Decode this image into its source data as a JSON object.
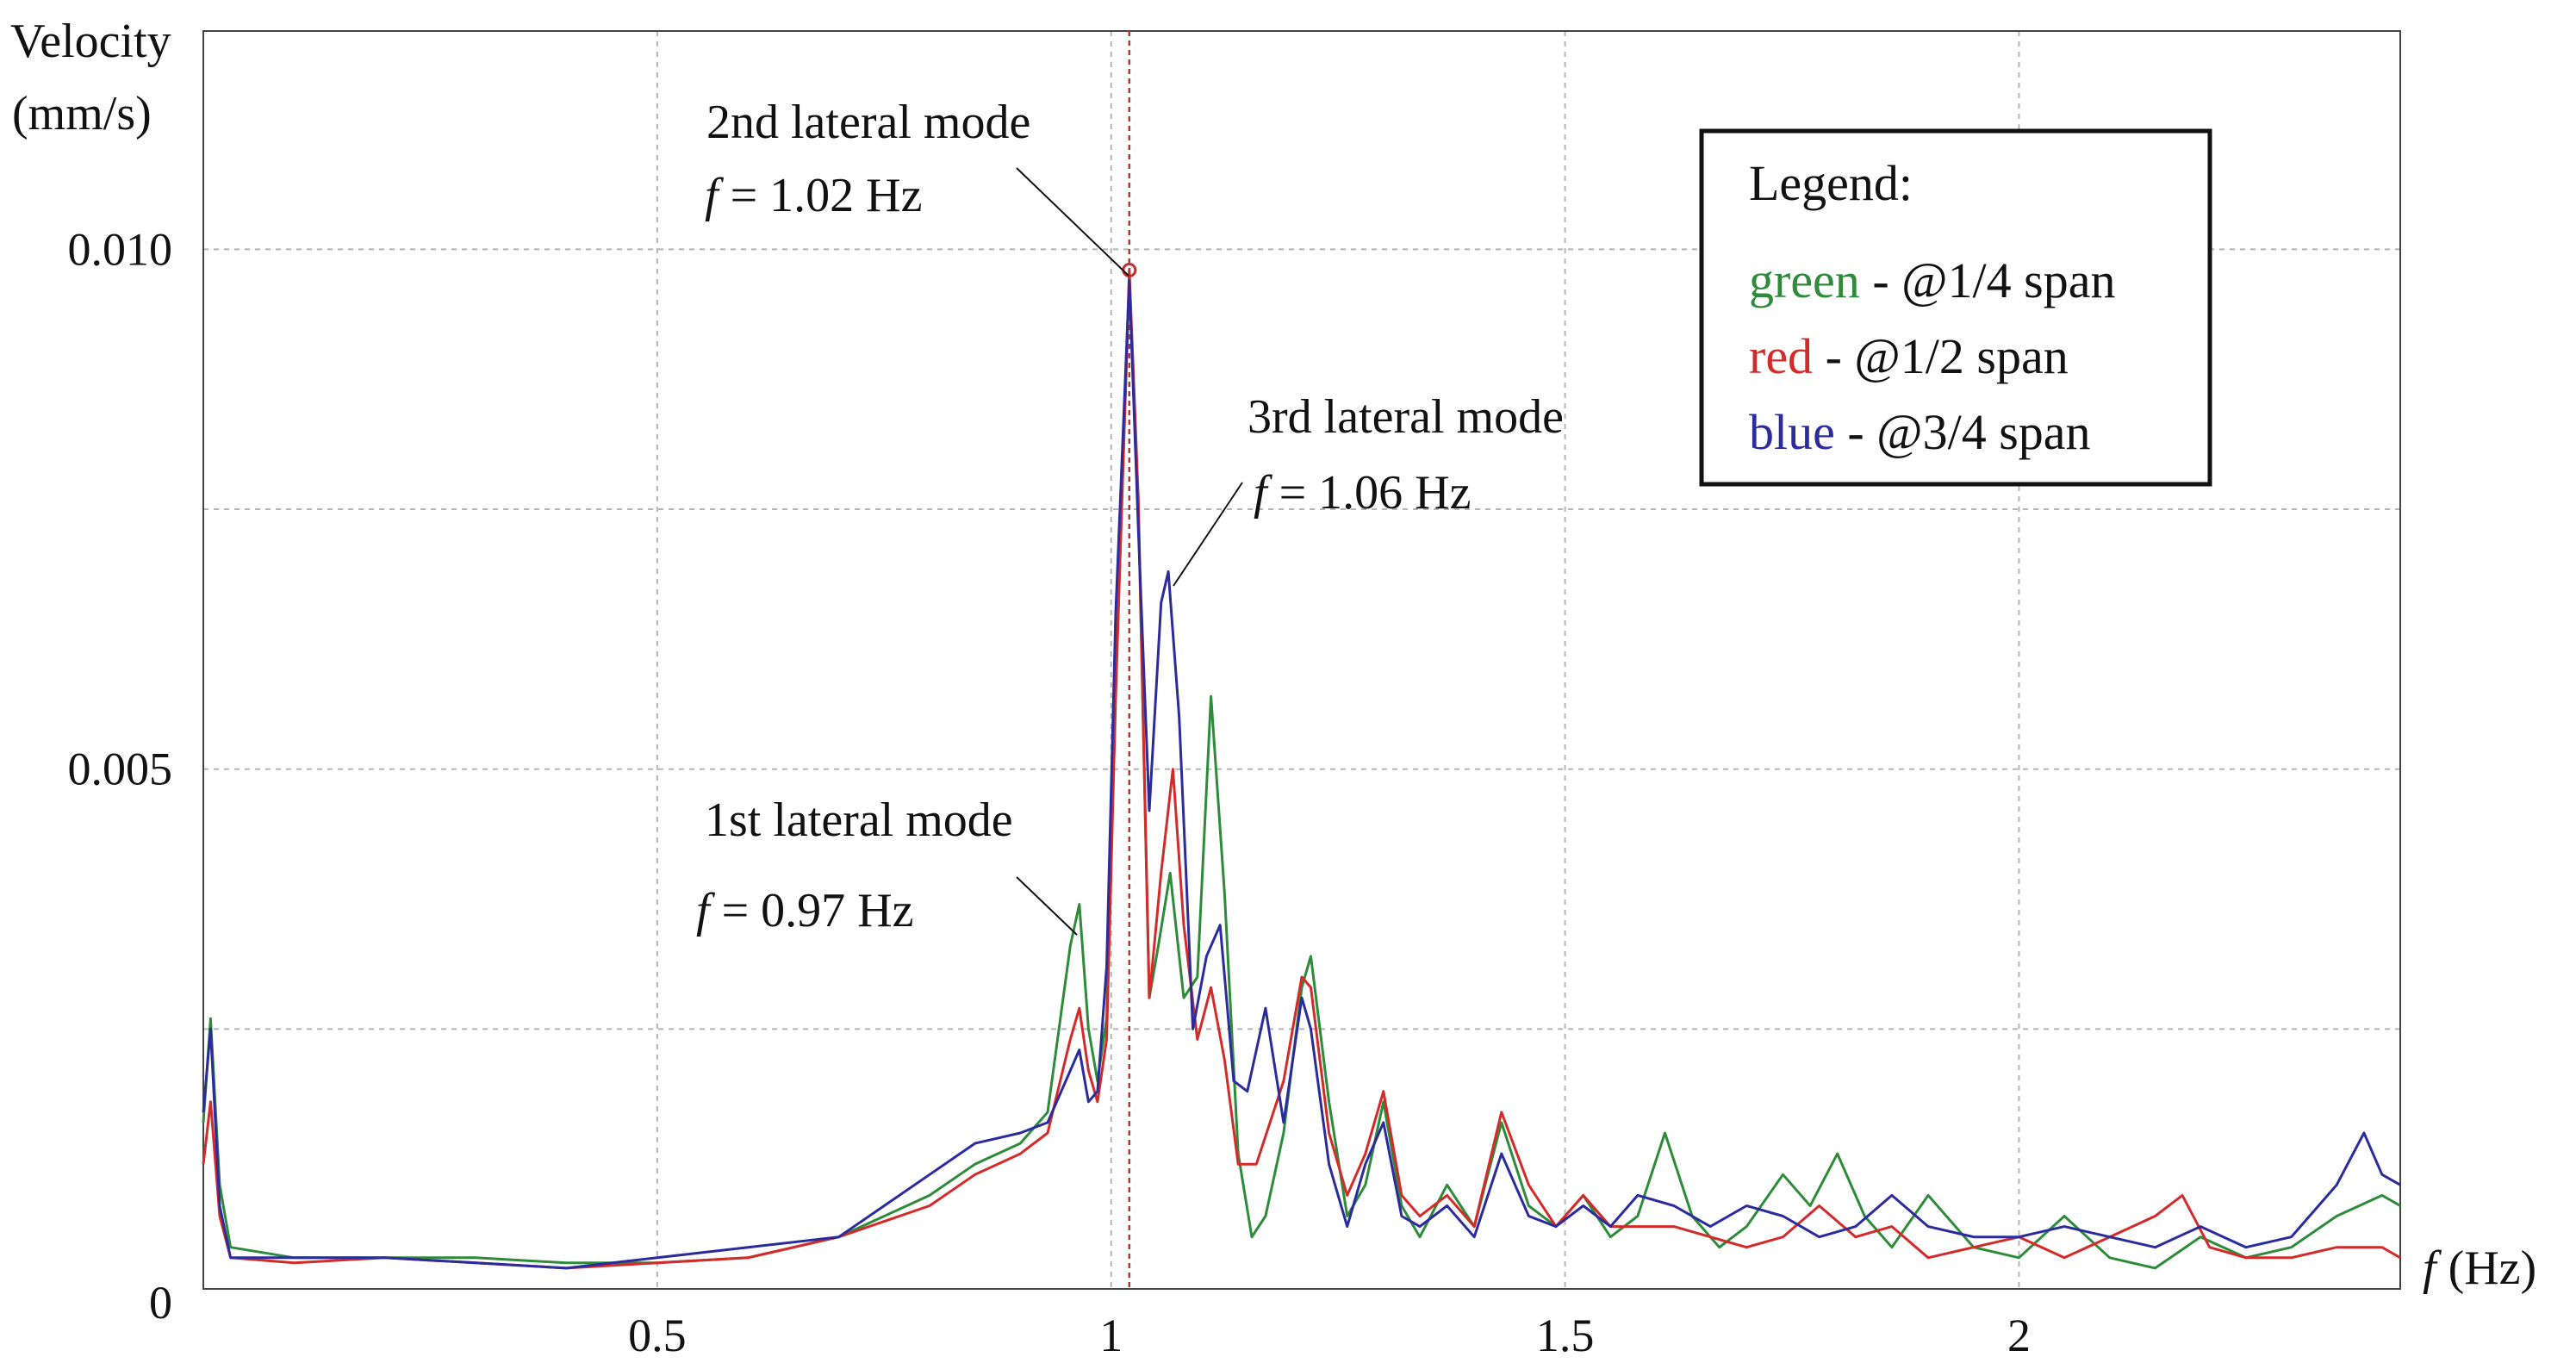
{
  "chart_data": {
    "type": "line",
    "title": "",
    "ylabel_line1": "Velocity",
    "ylabel_line2": "(mm/s)",
    "xlabel_italic": "f",
    "xlabel_rest": " (Hz)",
    "xlim": [
      0,
      2.42
    ],
    "ylim": [
      0,
      0.0121
    ],
    "x_ticks": [
      {
        "value": 0.5,
        "label": "0.5"
      },
      {
        "value": 1.0,
        "label": "1"
      },
      {
        "value": 1.5,
        "label": "1.5"
      },
      {
        "value": 2.0,
        "label": "2"
      }
    ],
    "y_ticks": [
      {
        "value": 0,
        "label": "0"
      },
      {
        "value": 0.005,
        "label": "0.005"
      },
      {
        "value": 0.01,
        "label": "0.010"
      }
    ],
    "x_grid": [
      0.5,
      1.0,
      1.5,
      2.0
    ],
    "y_grid": [
      0.0025,
      0.005,
      0.0075,
      0.01
    ],
    "marker_x": 1.02,
    "legend": {
      "title": "Legend:",
      "entries": [
        {
          "color_word": "green",
          "rest": " - @1/4 span",
          "color": "#2e8b3a"
        },
        {
          "color_word": "red",
          "rest": " - @1/2 span",
          "color": "#d42a2a"
        },
        {
          "color_word": "blue",
          "rest": " - @3/4 span",
          "color": "#2b2b9e"
        }
      ]
    },
    "annotations": [
      {
        "id": "mode1",
        "title": "1st lateral mode",
        "f_label": "f",
        "value_text": " = 0.97  Hz",
        "x": 0.97,
        "y": 0.0037
      },
      {
        "id": "mode2",
        "title": "2nd lateral mode",
        "f_label": "f",
        "value_text": " = 1.02  Hz",
        "x": 1.02,
        "y": 0.0098
      },
      {
        "id": "mode3",
        "title": "3rd lateral mode",
        "f_label": "f",
        "value_text": " = 1.06  Hz",
        "x": 1.06,
        "y": 0.0069
      }
    ],
    "series": [
      {
        "name": "green - @1/4 span",
        "color": "#2e8b3a",
        "points": [
          [
            0.0,
            0.0016
          ],
          [
            0.008,
            0.0026
          ],
          [
            0.018,
            0.001
          ],
          [
            0.03,
            0.0004
          ],
          [
            0.1,
            0.0003
          ],
          [
            0.2,
            0.0003
          ],
          [
            0.3,
            0.0003
          ],
          [
            0.4,
            0.00025
          ],
          [
            0.5,
            0.00025
          ],
          [
            0.6,
            0.0003
          ],
          [
            0.7,
            0.0005
          ],
          [
            0.8,
            0.0009
          ],
          [
            0.85,
            0.0012
          ],
          [
            0.9,
            0.0014
          ],
          [
            0.93,
            0.0017
          ],
          [
            0.955,
            0.0033
          ],
          [
            0.965,
            0.0037
          ],
          [
            0.975,
            0.0025
          ],
          [
            0.985,
            0.002
          ],
          [
            0.995,
            0.0026
          ],
          [
            1.005,
            0.0058
          ],
          [
            1.02,
            0.0097
          ],
          [
            1.03,
            0.0075
          ],
          [
            1.042,
            0.0028
          ],
          [
            1.052,
            0.0033
          ],
          [
            1.065,
            0.004
          ],
          [
            1.08,
            0.0028
          ],
          [
            1.095,
            0.003
          ],
          [
            1.11,
            0.0057
          ],
          [
            1.125,
            0.0038
          ],
          [
            1.14,
            0.0013
          ],
          [
            1.155,
            0.0005
          ],
          [
            1.17,
            0.0007
          ],
          [
            1.19,
            0.0015
          ],
          [
            1.21,
            0.0029
          ],
          [
            1.22,
            0.0032
          ],
          [
            1.24,
            0.0018
          ],
          [
            1.26,
            0.0007
          ],
          [
            1.28,
            0.001
          ],
          [
            1.3,
            0.0018
          ],
          [
            1.32,
            0.0008
          ],
          [
            1.34,
            0.0005
          ],
          [
            1.37,
            0.001
          ],
          [
            1.4,
            0.0006
          ],
          [
            1.43,
            0.0016
          ],
          [
            1.46,
            0.0008
          ],
          [
            1.49,
            0.0006
          ],
          [
            1.52,
            0.0009
          ],
          [
            1.55,
            0.0005
          ],
          [
            1.58,
            0.0007
          ],
          [
            1.61,
            0.0015
          ],
          [
            1.64,
            0.0007
          ],
          [
            1.67,
            0.0004
          ],
          [
            1.7,
            0.0006
          ],
          [
            1.74,
            0.0011
          ],
          [
            1.77,
            0.0008
          ],
          [
            1.8,
            0.0013
          ],
          [
            1.83,
            0.0007
          ],
          [
            1.86,
            0.0004
          ],
          [
            1.9,
            0.0009
          ],
          [
            1.95,
            0.0004
          ],
          [
            2.0,
            0.0003
          ],
          [
            2.05,
            0.0007
          ],
          [
            2.1,
            0.0003
          ],
          [
            2.15,
            0.0002
          ],
          [
            2.2,
            0.0005
          ],
          [
            2.25,
            0.0003
          ],
          [
            2.3,
            0.0004
          ],
          [
            2.35,
            0.0007
          ],
          [
            2.4,
            0.0009
          ],
          [
            2.42,
            0.0008
          ]
        ]
      },
      {
        "name": "red - @1/2 span",
        "color": "#d42a2a",
        "points": [
          [
            0.0,
            0.0012
          ],
          [
            0.008,
            0.0018
          ],
          [
            0.018,
            0.0007
          ],
          [
            0.03,
            0.0003
          ],
          [
            0.1,
            0.00025
          ],
          [
            0.2,
            0.0003
          ],
          [
            0.3,
            0.00025
          ],
          [
            0.4,
            0.0002
          ],
          [
            0.5,
            0.00025
          ],
          [
            0.6,
            0.0003
          ],
          [
            0.7,
            0.0005
          ],
          [
            0.8,
            0.0008
          ],
          [
            0.85,
            0.0011
          ],
          [
            0.9,
            0.0013
          ],
          [
            0.93,
            0.0015
          ],
          [
            0.955,
            0.0024
          ],
          [
            0.965,
            0.0027
          ],
          [
            0.975,
            0.0021
          ],
          [
            0.985,
            0.0018
          ],
          [
            0.995,
            0.0024
          ],
          [
            1.005,
            0.0057
          ],
          [
            1.02,
            0.0098
          ],
          [
            1.03,
            0.0076
          ],
          [
            1.042,
            0.0028
          ],
          [
            1.055,
            0.004
          ],
          [
            1.068,
            0.005
          ],
          [
            1.08,
            0.0035
          ],
          [
            1.095,
            0.0024
          ],
          [
            1.11,
            0.0029
          ],
          [
            1.125,
            0.0022
          ],
          [
            1.14,
            0.0012
          ],
          [
            1.16,
            0.0012
          ],
          [
            1.19,
            0.002
          ],
          [
            1.21,
            0.003
          ],
          [
            1.22,
            0.0029
          ],
          [
            1.24,
            0.0015
          ],
          [
            1.26,
            0.0009
          ],
          [
            1.28,
            0.0013
          ],
          [
            1.3,
            0.0019
          ],
          [
            1.32,
            0.0009
          ],
          [
            1.34,
            0.0007
          ],
          [
            1.37,
            0.0009
          ],
          [
            1.4,
            0.0006
          ],
          [
            1.43,
            0.0017
          ],
          [
            1.46,
            0.001
          ],
          [
            1.49,
            0.0006
          ],
          [
            1.52,
            0.0009
          ],
          [
            1.55,
            0.0006
          ],
          [
            1.58,
            0.0006
          ],
          [
            1.62,
            0.0006
          ],
          [
            1.66,
            0.0005
          ],
          [
            1.7,
            0.0004
          ],
          [
            1.74,
            0.0005
          ],
          [
            1.78,
            0.0008
          ],
          [
            1.82,
            0.0005
          ],
          [
            1.86,
            0.0006
          ],
          [
            1.9,
            0.0003
          ],
          [
            1.95,
            0.0004
          ],
          [
            2.0,
            0.0005
          ],
          [
            2.05,
            0.0003
          ],
          [
            2.1,
            0.0005
          ],
          [
            2.15,
            0.0007
          ],
          [
            2.18,
            0.0009
          ],
          [
            2.21,
            0.0004
          ],
          [
            2.25,
            0.0003
          ],
          [
            2.3,
            0.0003
          ],
          [
            2.35,
            0.0004
          ],
          [
            2.4,
            0.0004
          ],
          [
            2.42,
            0.0003
          ]
        ]
      },
      {
        "name": "blue - @3/4 span",
        "color": "#2b2b9e",
        "points": [
          [
            0.0,
            0.0017
          ],
          [
            0.008,
            0.0025
          ],
          [
            0.018,
            0.0008
          ],
          [
            0.03,
            0.0003
          ],
          [
            0.1,
            0.0003
          ],
          [
            0.2,
            0.0003
          ],
          [
            0.3,
            0.00025
          ],
          [
            0.4,
            0.0002
          ],
          [
            0.5,
            0.0003
          ],
          [
            0.6,
            0.0004
          ],
          [
            0.7,
            0.0005
          ],
          [
            0.8,
            0.0011
          ],
          [
            0.85,
            0.0014
          ],
          [
            0.9,
            0.0015
          ],
          [
            0.93,
            0.0016
          ],
          [
            0.955,
            0.0021
          ],
          [
            0.965,
            0.0023
          ],
          [
            0.975,
            0.0018
          ],
          [
            0.985,
            0.0019
          ],
          [
            0.995,
            0.0031
          ],
          [
            1.005,
            0.0065
          ],
          [
            1.02,
            0.0097
          ],
          [
            1.03,
            0.0073
          ],
          [
            1.042,
            0.0046
          ],
          [
            1.055,
            0.0066
          ],
          [
            1.063,
            0.0069
          ],
          [
            1.075,
            0.0055
          ],
          [
            1.09,
            0.0025
          ],
          [
            1.105,
            0.0032
          ],
          [
            1.12,
            0.0035
          ],
          [
            1.135,
            0.002
          ],
          [
            1.15,
            0.0019
          ],
          [
            1.17,
            0.0027
          ],
          [
            1.19,
            0.0016
          ],
          [
            1.21,
            0.0028
          ],
          [
            1.22,
            0.0025
          ],
          [
            1.24,
            0.0012
          ],
          [
            1.26,
            0.0006
          ],
          [
            1.28,
            0.0012
          ],
          [
            1.3,
            0.0016
          ],
          [
            1.32,
            0.0007
          ],
          [
            1.34,
            0.0006
          ],
          [
            1.37,
            0.0008
          ],
          [
            1.4,
            0.0005
          ],
          [
            1.43,
            0.0013
          ],
          [
            1.46,
            0.0007
          ],
          [
            1.49,
            0.0006
          ],
          [
            1.52,
            0.0008
          ],
          [
            1.55,
            0.0006
          ],
          [
            1.58,
            0.0009
          ],
          [
            1.62,
            0.0008
          ],
          [
            1.66,
            0.0006
          ],
          [
            1.7,
            0.0008
          ],
          [
            1.74,
            0.0007
          ],
          [
            1.78,
            0.0005
          ],
          [
            1.82,
            0.0006
          ],
          [
            1.86,
            0.0009
          ],
          [
            1.9,
            0.0006
          ],
          [
            1.95,
            0.0005
          ],
          [
            2.0,
            0.0005
          ],
          [
            2.05,
            0.0006
          ],
          [
            2.1,
            0.0005
          ],
          [
            2.15,
            0.0004
          ],
          [
            2.2,
            0.0006
          ],
          [
            2.25,
            0.0004
          ],
          [
            2.3,
            0.0005
          ],
          [
            2.35,
            0.001
          ],
          [
            2.38,
            0.0015
          ],
          [
            2.4,
            0.0011
          ],
          [
            2.42,
            0.001
          ]
        ]
      }
    ]
  }
}
